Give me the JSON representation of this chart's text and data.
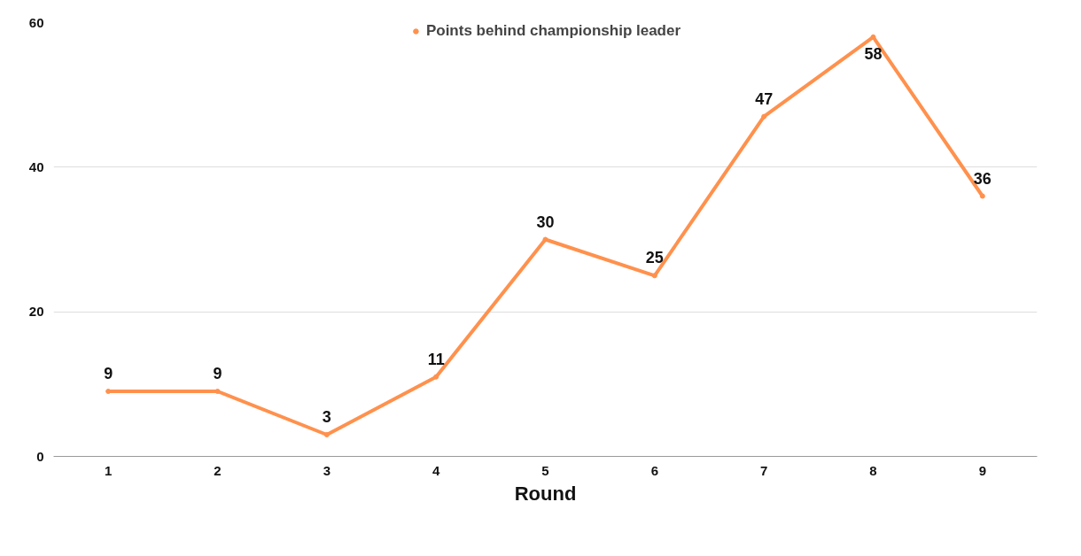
{
  "chart_data": {
    "type": "line",
    "xlabel": "Round",
    "categories": [
      "1",
      "2",
      "3",
      "4",
      "5",
      "6",
      "7",
      "8",
      "9"
    ],
    "series": [
      {
        "name": "Points behind championship leader",
        "color": "#ff914d",
        "values": [
          9,
          9,
          3,
          11,
          30,
          25,
          47,
          58,
          36
        ]
      }
    ],
    "ylim": [
      0,
      60
    ],
    "yticks": [
      0,
      20,
      40,
      60
    ],
    "grid": "y",
    "legend": "top",
    "data_labels": true,
    "marker": "circle",
    "line_style": "solid"
  }
}
